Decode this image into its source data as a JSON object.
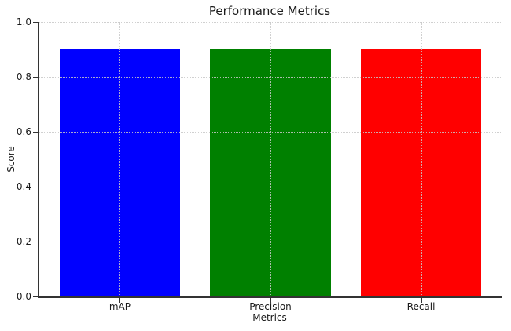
{
  "chart_data": {
    "type": "bar",
    "title": "Performance Metrics",
    "xlabel": "Metrics",
    "ylabel": "Score",
    "categories": [
      "mAP",
      "Precision",
      "Recall"
    ],
    "values": [
      0.9,
      0.9,
      0.9
    ],
    "bar_colors": [
      "#0000ff",
      "#008000",
      "#ff0000"
    ],
    "ylim": [
      0.0,
      1.0
    ],
    "yticks": [
      0.0,
      0.2,
      0.4,
      0.6,
      0.8,
      1.0
    ],
    "ytick_labels": [
      "0.0",
      "0.2",
      "0.4",
      "0.6",
      "0.8",
      "1.0"
    ],
    "xlim": [
      -0.54,
      2.54
    ],
    "bar_width": 0.8,
    "grid": "dotted, horizontal and vertical, drawn above bars",
    "legend": "none",
    "spines": [
      "left",
      "bottom"
    ],
    "axis_color": "#333333",
    "grid_color": "#c8c8c8",
    "text_color": "#1a1a1a",
    "background_color": "#ffffff"
  }
}
